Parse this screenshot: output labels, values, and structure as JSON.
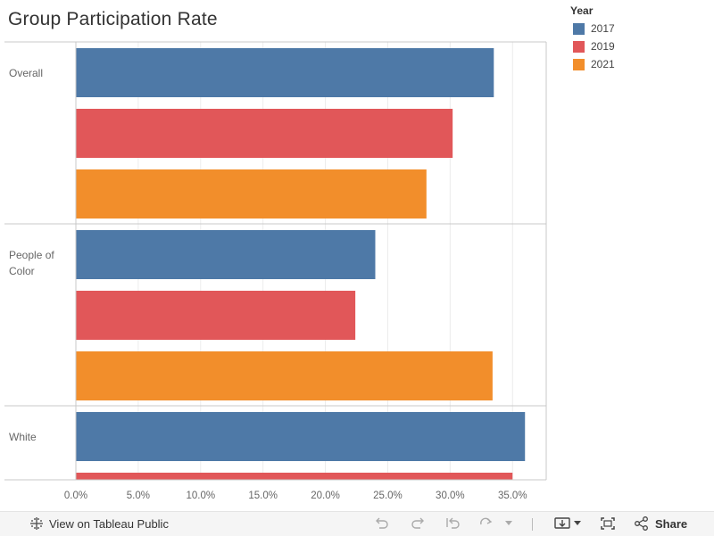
{
  "title": "Group Participation Rate",
  "legend": {
    "title": "Year",
    "items": [
      {
        "label": "2017",
        "color": "#4e79a7"
      },
      {
        "label": "2019",
        "color": "#e15759"
      },
      {
        "label": "2021",
        "color": "#f28e2b"
      }
    ]
  },
  "chart_data": {
    "type": "bar",
    "orientation": "horizontal",
    "title": "Group Participation Rate",
    "categories": [
      "Overall",
      "People of Color",
      "White"
    ],
    "category_label_lines": [
      [
        "Overall"
      ],
      [
        "People of",
        "Color"
      ],
      [
        "White"
      ]
    ],
    "series": [
      {
        "name": "2017",
        "color": "#4e79a7",
        "values": [
          33.5,
          24.0,
          36.0
        ]
      },
      {
        "name": "2019",
        "color": "#e15759",
        "values": [
          30.2,
          22.4,
          35.0
        ]
      },
      {
        "name": "2021",
        "color": "#f28e2b",
        "values": [
          28.1,
          33.4,
          null
        ]
      }
    ],
    "x_ticks": [
      "0.0%",
      "5.0%",
      "10.0%",
      "15.0%",
      "20.0%",
      "25.0%",
      "30.0%",
      "35.0%"
    ],
    "x_tick_values": [
      0,
      5,
      10,
      15,
      20,
      25,
      30,
      35
    ],
    "xlim": [
      0,
      37.7
    ],
    "xlabel": "",
    "ylabel": "",
    "grid": true,
    "legend_position": "top-right"
  },
  "toolbar": {
    "view_label": "View on Tableau Public",
    "share_label": "Share"
  }
}
